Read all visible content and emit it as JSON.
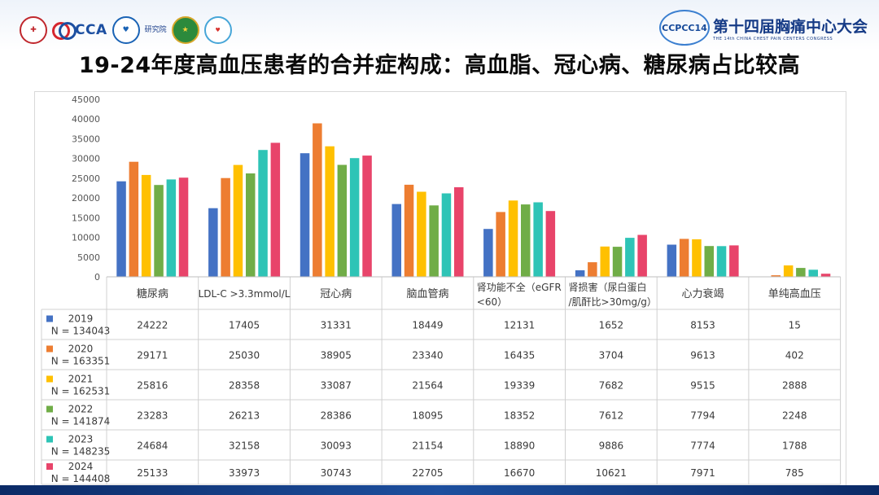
{
  "header": {
    "logo_cca": "CCA",
    "logo_institute": "研究院",
    "logo_conference_ring": "CCPCC14",
    "conference_name": "第十四届胸痛中心大会",
    "conference_sub": "THE 14th CHINA CHEST PAIN CENTERS CONGRESS"
  },
  "slide": {
    "title": "19-24年度高血压患者的合并症构成：高血脂、冠心病、糖尿病占比较高"
  },
  "colors": {
    "s2019": "#4472c4",
    "s2020": "#ed7d31",
    "s2021": "#ffc000",
    "s2022": "#70ad47",
    "s2023": "#2ec4b6",
    "s2024": "#e8446a"
  },
  "chart_data": {
    "type": "bar",
    "ylim": [
      0,
      45000
    ],
    "yticks": [
      0,
      5000,
      10000,
      15000,
      20000,
      25000,
      30000,
      35000,
      40000,
      45000
    ],
    "grid": false,
    "legend": "table-left",
    "categories": [
      [
        "糖尿病"
      ],
      [
        "LDL-C >3.3mmol/L"
      ],
      [
        "冠心病"
      ],
      [
        "脑血管病"
      ],
      [
        "肾功能不全（eGFR",
        "<60）"
      ],
      [
        "肾损害（尿白蛋白",
        "/肌酐比>30mg/g）"
      ],
      [
        "心力衰竭"
      ],
      [
        "单纯高血压"
      ]
    ],
    "series": [
      {
        "name": "2019",
        "n": "N = 134043",
        "values": [
          24222,
          17405,
          31331,
          18449,
          12131,
          1652,
          8153,
          15
        ]
      },
      {
        "name": "2020",
        "n": "N = 163351",
        "values": [
          29171,
          25030,
          38905,
          23340,
          16435,
          3704,
          9613,
          402
        ]
      },
      {
        "name": "2021",
        "n": "N = 162531",
        "values": [
          25816,
          28358,
          33087,
          21564,
          19339,
          7682,
          9515,
          2888
        ]
      },
      {
        "name": "2022",
        "n": "N = 141874",
        "values": [
          23283,
          26213,
          28386,
          18095,
          18352,
          7612,
          7794,
          2248
        ]
      },
      {
        "name": "2023",
        "n": "N = 148235",
        "values": [
          24684,
          32158,
          30093,
          21154,
          18890,
          9886,
          7774,
          1788
        ]
      },
      {
        "name": "2024",
        "n": "N = 144408",
        "values": [
          25133,
          33973,
          30743,
          22705,
          16670,
          10621,
          7971,
          785
        ]
      }
    ]
  }
}
